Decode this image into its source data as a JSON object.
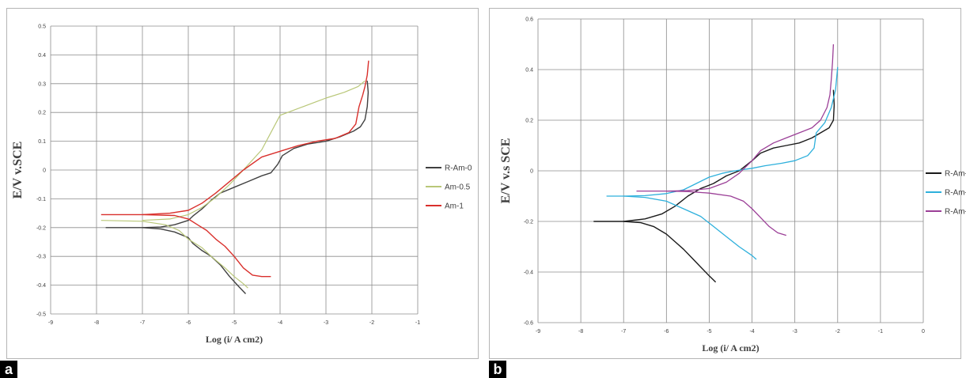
{
  "panels": [
    {
      "tag": "a"
    },
    {
      "tag": "b"
    }
  ],
  "chart_data": [
    {
      "type": "line",
      "xlabel": "Log (i/ A cm2)",
      "ylabel": "E/V v.SCE",
      "xlim": [
        -9,
        -1
      ],
      "ylim": [
        -0.5,
        0.5
      ],
      "xticks": [
        "-9",
        "-8",
        "-7",
        "-6",
        "-5",
        "-4",
        "-3",
        "-2",
        "-1"
      ],
      "yticks": [
        "0.5",
        "0.4",
        "0.3",
        "0.2",
        "0.1",
        "0",
        "-0.1",
        "-0.2",
        "-0.3",
        "-0.4",
        "-0.5"
      ],
      "grid": true,
      "legend_position": "right",
      "series": [
        {
          "name": "R-Am-0",
          "color": "#404040",
          "width": 1.4,
          "x": [
            -7.8,
            -7.0,
            -6.6,
            -6.3,
            -6.0,
            -5.9,
            -5.7,
            -5.5,
            -5.3,
            -5.1,
            -4.9,
            -4.75
          ],
          "y": [
            -0.2,
            -0.2,
            -0.205,
            -0.215,
            -0.235,
            -0.255,
            -0.28,
            -0.3,
            -0.33,
            -0.37,
            -0.405,
            -0.43
          ]
        },
        {
          "name": "R-Am-0",
          "color": "#404040",
          "width": 1.4,
          "x": [
            -7.0,
            -6.6,
            -6.3,
            -6.0,
            -5.9,
            -5.7,
            -5.5,
            -5.3,
            -5.0,
            -4.7,
            -4.4,
            -4.2,
            -4.05,
            -3.95,
            -3.7,
            -3.4,
            -3.0,
            -2.7,
            -2.4,
            -2.25,
            -2.15,
            -2.1,
            -2.08,
            -2.1
          ],
          "y": [
            -0.2,
            -0.198,
            -0.19,
            -0.175,
            -0.16,
            -0.135,
            -0.105,
            -0.08,
            -0.06,
            -0.04,
            -0.02,
            -0.01,
            0.02,
            0.05,
            0.075,
            0.09,
            0.1,
            0.115,
            0.135,
            0.15,
            0.175,
            0.22,
            0.27,
            0.31
          ]
        },
        {
          "name": "Am-0.5",
          "color": "#b9c778",
          "width": 1.2,
          "x": [
            -7.9,
            -7.0,
            -6.5,
            -6.2,
            -6.0,
            -5.7,
            -5.5,
            -5.2,
            -5.0,
            -4.8,
            -4.7
          ],
          "y": [
            -0.175,
            -0.178,
            -0.19,
            -0.21,
            -0.24,
            -0.27,
            -0.3,
            -0.34,
            -0.37,
            -0.395,
            -0.41
          ]
        },
        {
          "name": "Am-0.5",
          "color": "#b9c778",
          "width": 1.2,
          "x": [
            -7.0,
            -6.4,
            -6.0,
            -5.7,
            -5.4,
            -5.1,
            -4.8,
            -4.4,
            -4.0,
            -3.5,
            -3.0,
            -2.6,
            -2.3,
            -2.15
          ],
          "y": [
            -0.175,
            -0.17,
            -0.155,
            -0.13,
            -0.095,
            -0.05,
            0.0,
            0.07,
            0.19,
            0.22,
            0.25,
            0.27,
            0.29,
            0.31
          ]
        },
        {
          "name": "Am-1",
          "color": "#d9302c",
          "width": 1.4,
          "x": [
            -7.9,
            -7.0,
            -6.3,
            -6.0,
            -5.8,
            -5.6,
            -5.4,
            -5.2,
            -5.0,
            -4.8,
            -4.6,
            -4.4,
            -4.2
          ],
          "y": [
            -0.155,
            -0.155,
            -0.158,
            -0.17,
            -0.19,
            -0.21,
            -0.24,
            -0.265,
            -0.3,
            -0.34,
            -0.365,
            -0.37,
            -0.37
          ]
        },
        {
          "name": "Am-1",
          "color": "#d9302c",
          "width": 1.4,
          "x": [
            -7.0,
            -6.4,
            -6.0,
            -5.7,
            -5.4,
            -5.1,
            -4.8,
            -4.4,
            -4.0,
            -3.6,
            -3.2,
            -2.8,
            -2.5,
            -2.35,
            -2.28,
            -2.2,
            -2.15,
            -2.1,
            -2.07
          ],
          "y": [
            -0.155,
            -0.15,
            -0.14,
            -0.115,
            -0.08,
            -0.04,
            0.0,
            0.045,
            0.065,
            0.085,
            0.1,
            0.11,
            0.13,
            0.16,
            0.22,
            0.26,
            0.29,
            0.33,
            0.38
          ]
        }
      ],
      "legend": [
        {
          "label": "R-Am-0",
          "color": "#404040"
        },
        {
          "label": "Am-0.5",
          "color": "#b9c778"
        },
        {
          "label": "Am-1",
          "color": "#d9302c"
        }
      ]
    },
    {
      "type": "line",
      "xlabel": "Log (i/ A cm2)",
      "ylabel": "E/V  v.s SCE",
      "xlim": [
        -9,
        0
      ],
      "ylim": [
        -0.6,
        0.6
      ],
      "xticks": [
        "-9",
        "-8",
        "-7",
        "-6",
        "-5",
        "-4",
        "-3",
        "-2",
        "-1",
        "0"
      ],
      "yticks": [
        "0.6",
        "0.4",
        "0.2",
        "0",
        "-0.2",
        "-0.4",
        "-0.6"
      ],
      "grid": true,
      "legend_position": "right",
      "series": [
        {
          "name": "R-Am-",
          "color": "#1a1a1a",
          "width": 1.4,
          "x": [
            -7.7,
            -7.0,
            -6.6,
            -6.3,
            -6.0,
            -5.8,
            -5.6,
            -5.4,
            -5.2,
            -5.0,
            -4.85
          ],
          "y": [
            -0.2,
            -0.2,
            -0.205,
            -0.22,
            -0.25,
            -0.28,
            -0.31,
            -0.345,
            -0.38,
            -0.415,
            -0.44
          ]
        },
        {
          "name": "R-Am-",
          "color": "#1a1a1a",
          "width": 1.4,
          "x": [
            -7.0,
            -6.5,
            -6.1,
            -5.8,
            -5.5,
            -5.2,
            -4.9,
            -4.6,
            -4.3,
            -4.0,
            -3.8,
            -3.5,
            -3.2,
            -2.9,
            -2.6,
            -2.4,
            -2.2,
            -2.1,
            -2.08,
            -2.1
          ],
          "y": [
            -0.2,
            -0.19,
            -0.17,
            -0.14,
            -0.1,
            -0.07,
            -0.05,
            -0.02,
            0.0,
            0.04,
            0.07,
            0.09,
            0.1,
            0.11,
            0.13,
            0.15,
            0.17,
            0.2,
            0.26,
            0.32
          ]
        },
        {
          "name": "R-Am-",
          "color": "#2eb0dc",
          "width": 1.3,
          "x": [
            -7.4,
            -7.0,
            -6.5,
            -6.0,
            -5.6,
            -5.2,
            -4.9,
            -4.6,
            -4.3,
            -4.0,
            -3.9
          ],
          "y": [
            -0.1,
            -0.1,
            -0.105,
            -0.12,
            -0.15,
            -0.18,
            -0.22,
            -0.26,
            -0.3,
            -0.335,
            -0.35
          ]
        },
        {
          "name": "R-Am-",
          "color": "#2eb0dc",
          "width": 1.3,
          "x": [
            -7.0,
            -6.5,
            -6.0,
            -5.6,
            -5.3,
            -5.0,
            -4.7,
            -4.4,
            -4.2,
            -4.0,
            -3.7,
            -3.3,
            -3.0,
            -2.7,
            -2.55,
            -2.5,
            -2.45,
            -2.3,
            -2.15,
            -2.05,
            -2.0
          ],
          "y": [
            -0.1,
            -0.098,
            -0.09,
            -0.075,
            -0.05,
            -0.025,
            -0.01,
            0.0,
            0.005,
            0.01,
            0.02,
            0.03,
            0.04,
            0.06,
            0.09,
            0.15,
            0.16,
            0.19,
            0.25,
            0.32,
            0.41
          ]
        },
        {
          "name": "R-Am-",
          "color": "#9b3f97",
          "width": 1.3,
          "x": [
            -6.7,
            -6.0,
            -5.5,
            -5.0,
            -4.5,
            -4.2,
            -4.0,
            -3.8,
            -3.6,
            -3.4,
            -3.2
          ],
          "y": [
            -0.08,
            -0.08,
            -0.082,
            -0.088,
            -0.1,
            -0.12,
            -0.15,
            -0.185,
            -0.22,
            -0.245,
            -0.255
          ]
        },
        {
          "name": "R-Am-",
          "color": "#9b3f97",
          "width": 1.3,
          "x": [
            -6.0,
            -5.5,
            -5.0,
            -4.6,
            -4.3,
            -4.0,
            -3.8,
            -3.5,
            -3.2,
            -2.9,
            -2.6,
            -2.4,
            -2.25,
            -2.18,
            -2.15,
            -2.12,
            -2.1
          ],
          "y": [
            -0.08,
            -0.078,
            -0.07,
            -0.045,
            -0.01,
            0.04,
            0.08,
            0.11,
            0.13,
            0.15,
            0.17,
            0.2,
            0.25,
            0.3,
            0.36,
            0.43,
            0.5
          ]
        }
      ],
      "legend": [
        {
          "label": "R-Am-",
          "color": "#1a1a1a"
        },
        {
          "label": "R-Am-",
          "color": "#2eb0dc"
        },
        {
          "label": "R-Am-",
          "color": "#9b3f97"
        }
      ]
    }
  ]
}
